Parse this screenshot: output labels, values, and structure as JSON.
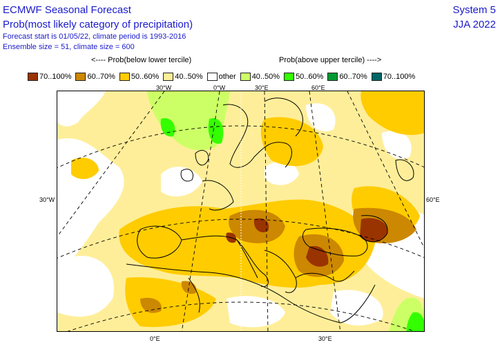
{
  "header": {
    "title": "ECMWF Seasonal Forecast",
    "subtitle": "Prob(most likely category of precipitation)",
    "info_line1": "Forecast start is 01/05/22, climate period is 1993-2016",
    "info_line2": "Ensemble size = 51, climate size = 600",
    "system": "System 5",
    "season": "JJA 2022"
  },
  "legend": {
    "below_label": "<---- Prob(below lower tercile)",
    "above_label": "Prob(above upper tercile) ---->",
    "items": [
      {
        "label": "70..100%",
        "color": "#993300"
      },
      {
        "label": "60..70%",
        "color": "#cc8800"
      },
      {
        "label": "50..60%",
        "color": "#ffcc00"
      },
      {
        "label": "40..50%",
        "color": "#ffee99"
      },
      {
        "label": "other",
        "color": "#ffffff"
      },
      {
        "label": "40..50%",
        "color": "#ccff66"
      },
      {
        "label": "50..60%",
        "color": "#33ff00"
      },
      {
        "label": "60..70%",
        "color": "#009933"
      },
      {
        "label": "70..100%",
        "color": "#006666"
      }
    ]
  },
  "map": {
    "top_ticks": [
      "30°W",
      "0°W",
      "30°E",
      "60°E"
    ],
    "bottom_ticks": [
      "0°E",
      "30°E"
    ],
    "left_tick": "30°W",
    "right_tick": "60°E"
  }
}
